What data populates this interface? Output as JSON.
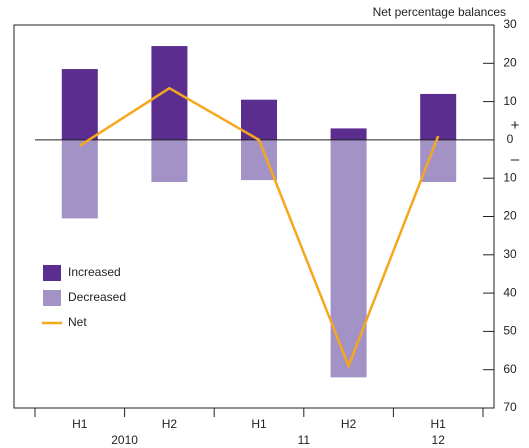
{
  "chart_data": {
    "type": "bar",
    "y_title": "Net percentage balances",
    "y_positive_label": "+",
    "y_negative_label": "–",
    "categories": [
      "H1",
      "H2",
      "H1",
      "H2",
      "H1"
    ],
    "x_group_labels": [
      "2010",
      null,
      "11",
      null,
      "12"
    ],
    "series": [
      {
        "name": "Increased",
        "color": "#5b2d8e",
        "type": "bar",
        "values": [
          18.5,
          24.5,
          10.5,
          3,
          12
        ]
      },
      {
        "name": "Decreased",
        "color": "#a292c6",
        "type": "bar",
        "values": [
          -20.5,
          -11,
          -10.5,
          -62,
          -11
        ]
      },
      {
        "name": "Net",
        "color": "#f5a81c",
        "type": "line",
        "values": [
          -1.5,
          13.5,
          0,
          -59,
          1
        ]
      }
    ],
    "ylim": [
      -70,
      30
    ],
    "yticks": [
      30,
      20,
      10,
      0,
      {
        "value": -10,
        "label": "10"
      },
      {
        "value": -20,
        "label": "20"
      },
      {
        "value": -30,
        "label": "30"
      },
      {
        "value": -40,
        "label": "40"
      },
      {
        "value": -50,
        "label": "50"
      },
      {
        "value": -60,
        "label": "60"
      },
      {
        "value": -70,
        "label": "70"
      }
    ]
  }
}
